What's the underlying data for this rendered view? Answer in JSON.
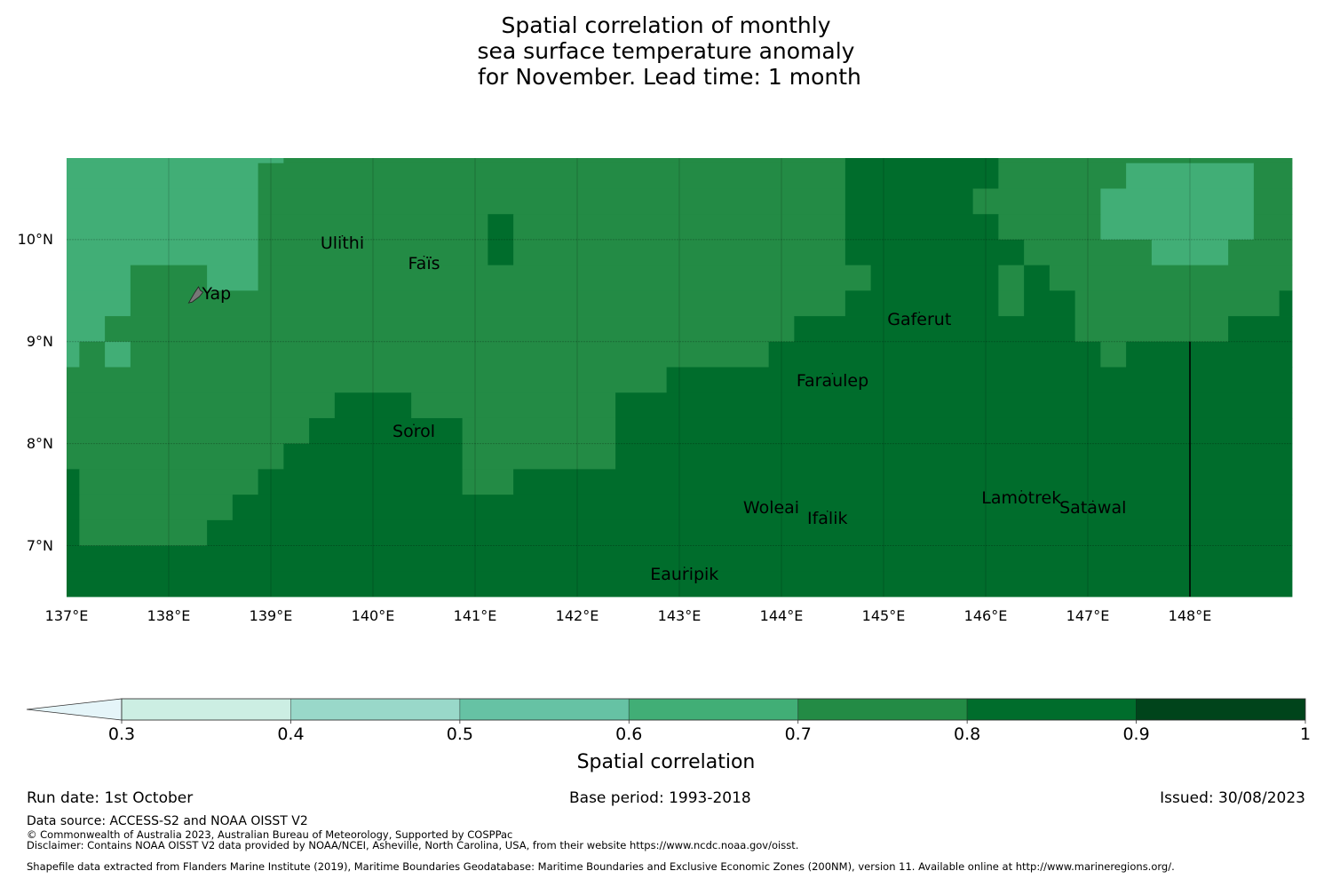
{
  "title_lines": [
    "Spatial correlation of monthly",
    "sea surface temperature anomaly",
    " for November. Lead time: 1 month"
  ],
  "chart_data": {
    "type": "heatmap",
    "title": "Spatial correlation of monthly sea surface temperature anomaly for November. Lead time: 1 month",
    "variable": "Spatial correlation",
    "lon_range": [
      137,
      149
    ],
    "lat_range": [
      6.5,
      10.8
    ],
    "lon_ticks": [
      "137°E",
      "138°E",
      "139°E",
      "140°E",
      "141°E",
      "142°E",
      "143°E",
      "144°E",
      "145°E",
      "146°E",
      "147°E",
      "148°E"
    ],
    "lon_tick_values": [
      137,
      138,
      139,
      140,
      141,
      142,
      143,
      144,
      145,
      146,
      147,
      148
    ],
    "lat_ticks": [
      "10°N",
      "9°N",
      "8°N",
      "7°N"
    ],
    "lat_tick_values": [
      10,
      9,
      8,
      7
    ],
    "grid": true,
    "cell_size_deg": 0.25,
    "grid_note": "rows listed north to south; columns west to east centered on 137.00..149.00°E; codes map to legend classes",
    "codes": {
      "A": "0.6-0.7",
      "B": "0.7-0.8",
      "C": "0.8-0.9"
    },
    "rows": [
      "AAAAAAAAABBBBBBBBBBBBBBBBBBBBBBCCCCCCBBBBBBBBBBBB",
      "AAAAAAAABBBBBBBBBBBBBBBBBBBBBBBCCCCCCBBBBBAAAAABB",
      "AAAAAAAABBBBBBBBBBBBBBBBBBBBBBBCCCCCBBBBBAAAAAABB",
      "AAAAAAAABBBBBBBBBCBBBBBBBBBBBBBCCCCCCBBBBAAAAAABB",
      "AAAAAAAABBBBBBBBBCBBBBBBBBBBBBBCCCCCCCBBBBBAAABBB",
      "AAABBBAABBBBBBBBBBBBBBBBBBBBBBBBCCCCCBCBBBBBBBBBB",
      "AAABBBBBBBBBBBBBBBBBBBBBBBBBBBBCCCCCCBCCBBBBBBBBC",
      "AABBBBBBBBBBBBBBBBBBBBBBBBBBBCCCCCCCCCCCBBBBBBCCC",
      "ABABBBBBBBBBBBBBBBBBBBBBBBBBCCCCCCCCCCCCCBCCCCCCC",
      "BBBBBBBBBBBBBBBBBBBBBBBBCCCCCCCCCCCCCCCCCCCCCCCCC",
      "BBBBBBBBBBBCCCBBBBBBBBCCCCCCCCCCCCCCCCCCCCCCCCCCC",
      "BBBBBBBBBBCCCCCCBBBBBBCCCCCCCCCCCCCCCCCCCCCCCCCCC",
      "BBBBBBBBBCCCCCCCBBBBBBCCCCCCCCCCCCCCCCCCCCCCCCCCC",
      "CBBBBBBBCCCCCCCCBBCCCCCCCCCCCCCCCCCCCCCCCCCCCCCCC",
      "CBBBBBBCCCCCCCCCCCCCCCCCCCCCCCCCCCCCCCCCCCCCCCCCC",
      "CBBBBBCCCCCCCCCCCCCCCCCCCCCCCCCCCCCCCCCCCCCCCCCCC",
      "CCCCCCCCCCCCCCCCCCCCCCCCCCCCCCCCCCCCCCCCCCCCCCCCC",
      "CCCCCCCCCCCCCCCCCCCCCCCCCCCCCCCCCCCCCCCCCCCCCCCCC"
    ],
    "row_lat_bounds": [
      [
        10.75,
        10.8
      ],
      [
        10.5,
        10.75
      ],
      [
        10.25,
        10.5
      ],
      [
        10.0,
        10.25
      ],
      [
        9.75,
        10.0
      ],
      [
        9.5,
        9.75
      ],
      [
        9.25,
        9.5
      ],
      [
        9.0,
        9.25
      ],
      [
        8.75,
        9.0
      ],
      [
        8.5,
        8.75
      ],
      [
        8.25,
        8.5
      ],
      [
        8.0,
        8.25
      ],
      [
        7.75,
        8.0
      ],
      [
        7.5,
        7.75
      ],
      [
        7.25,
        7.5
      ],
      [
        7.0,
        7.25
      ],
      [
        6.75,
        7.0
      ],
      [
        6.5,
        6.75
      ]
    ],
    "islands": [
      {
        "name": "Yap",
        "lon": 138.3,
        "lat": 9.45
      },
      {
        "name": "Ulithi",
        "lon": 139.7,
        "lat": 9.95
      },
      {
        "name": "Faïs",
        "lon": 140.5,
        "lat": 9.75
      },
      {
        "name": "Sorol",
        "lon": 140.4,
        "lat": 8.1
      },
      {
        "name": "Gaferut",
        "lon": 145.35,
        "lat": 9.2
      },
      {
        "name": "Faraulep",
        "lon": 144.5,
        "lat": 8.6
      },
      {
        "name": "Woleai",
        "lon": 143.9,
        "lat": 7.35
      },
      {
        "name": "Ifalik",
        "lon": 144.45,
        "lat": 7.25
      },
      {
        "name": "Lamotrek",
        "lon": 146.35,
        "lat": 7.45
      },
      {
        "name": "Satawal",
        "lon": 147.05,
        "lat": 7.35
      },
      {
        "name": "Eauripik",
        "lon": 143.05,
        "lat": 6.7
      }
    ],
    "boundary_line": {
      "lon": 148,
      "lat_from": 6.5,
      "lat_to": 9.0
    },
    "legend": {
      "label": "Spatial correlation",
      "placement": "bottom",
      "extend": "min",
      "bounds": [
        0.3,
        0.4,
        0.5,
        0.6,
        0.7,
        0.8,
        0.9,
        1.0
      ],
      "tick_labels": [
        "0.3",
        "0.4",
        "0.5",
        "0.6",
        "0.7",
        "0.8",
        "0.9",
        "1"
      ],
      "colors": [
        "#cceee3",
        "#99d8c9",
        "#66c2a4",
        "#41ae76",
        "#238b45",
        "#006d2c",
        "#00441b"
      ],
      "under_color": "#e5f5f9"
    }
  },
  "footer": {
    "run_date": "Run date: 1st October",
    "base_period": "Base period: 1993-2018",
    "issued": "Issued: 30/08/2023",
    "data_source": "Data source: ACCESS-S2 and NOAA OISST V2",
    "copyright": "© Commonwealth of Australia 2023, Australian Bureau of Meteorology, Supported by COSPPac",
    "disclaimer": "Disclaimer: Contains NOAA OISST V2 data provided by NOAA/NCEI, Asheville, North Carolina, USA, from their website https://www.ncdc.noaa.gov/oisst.",
    "shapefile": "Shapefile data extracted from Flanders Marine Institute (2019), Maritime Boundaries Geodatabase: Maritime Boundaries and Exclusive Economic Zones (200NM), version 11. Available online at http://www.marineregions.org/."
  }
}
